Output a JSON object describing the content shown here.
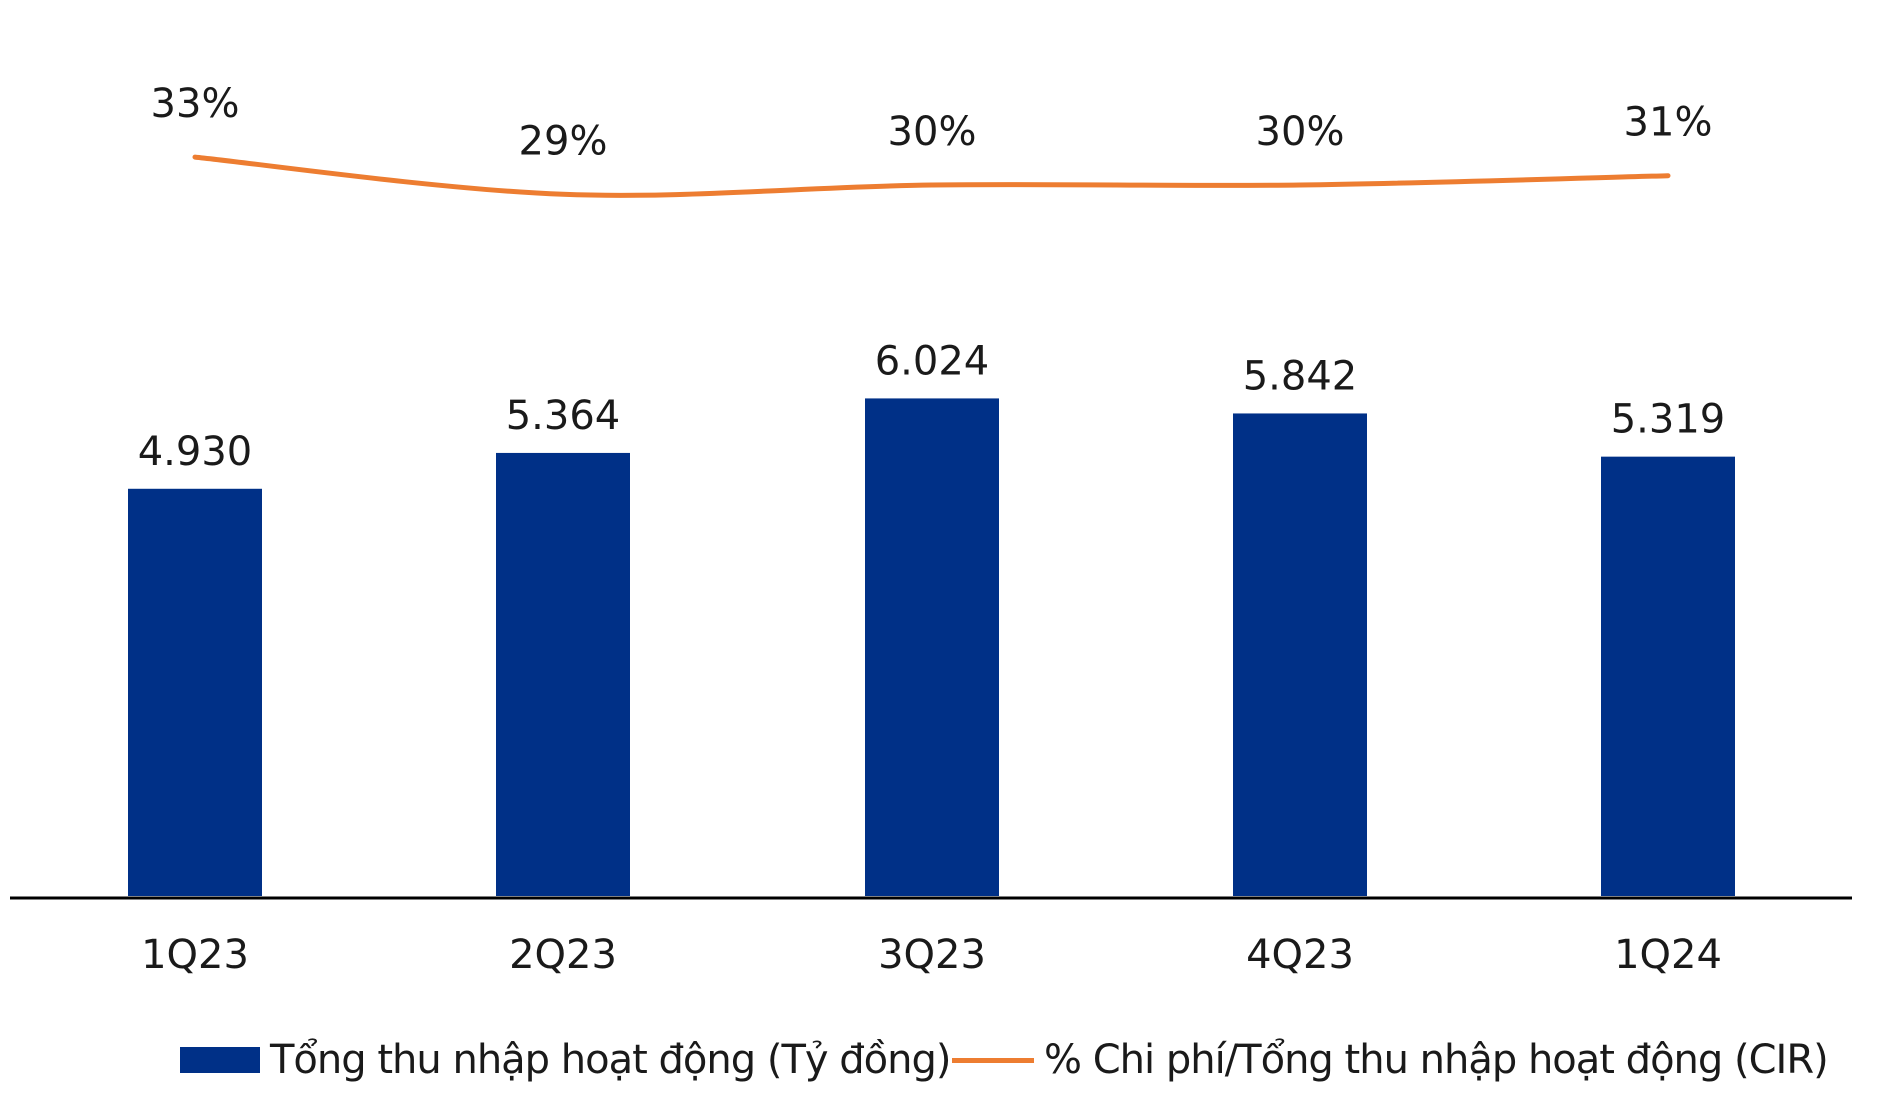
{
  "chart_data": {
    "type": "bar",
    "categories": [
      "1Q23",
      "2Q23",
      "3Q23",
      "4Q23",
      "1Q24"
    ],
    "series": [
      {
        "name": "Tổng thu nhập hoạt động (Tỷ đồng)",
        "type": "bar",
        "values": [
          4930,
          5364,
          6024,
          5842,
          5319
        ],
        "labels": [
          "4.930",
          "5.364",
          "6.024",
          "5.842",
          "5.319"
        ],
        "color": "#003087"
      },
      {
        "name": "% Chi phí/Tổng thu nhập hoạt động (CIR)",
        "type": "line",
        "values": [
          33,
          29,
          30,
          30,
          31
        ],
        "labels": [
          "33%",
          "29%",
          "30%",
          "30%",
          "31%"
        ],
        "color": "#ED7D31"
      }
    ],
    "legend_position": "bottom",
    "grid": false
  },
  "legend": {
    "bar_label": "Tổng thu nhập hoạt động (Tỷ đồng)",
    "line_label": "% Chi phí/Tổng thu nhập hoạt động (CIR)"
  }
}
